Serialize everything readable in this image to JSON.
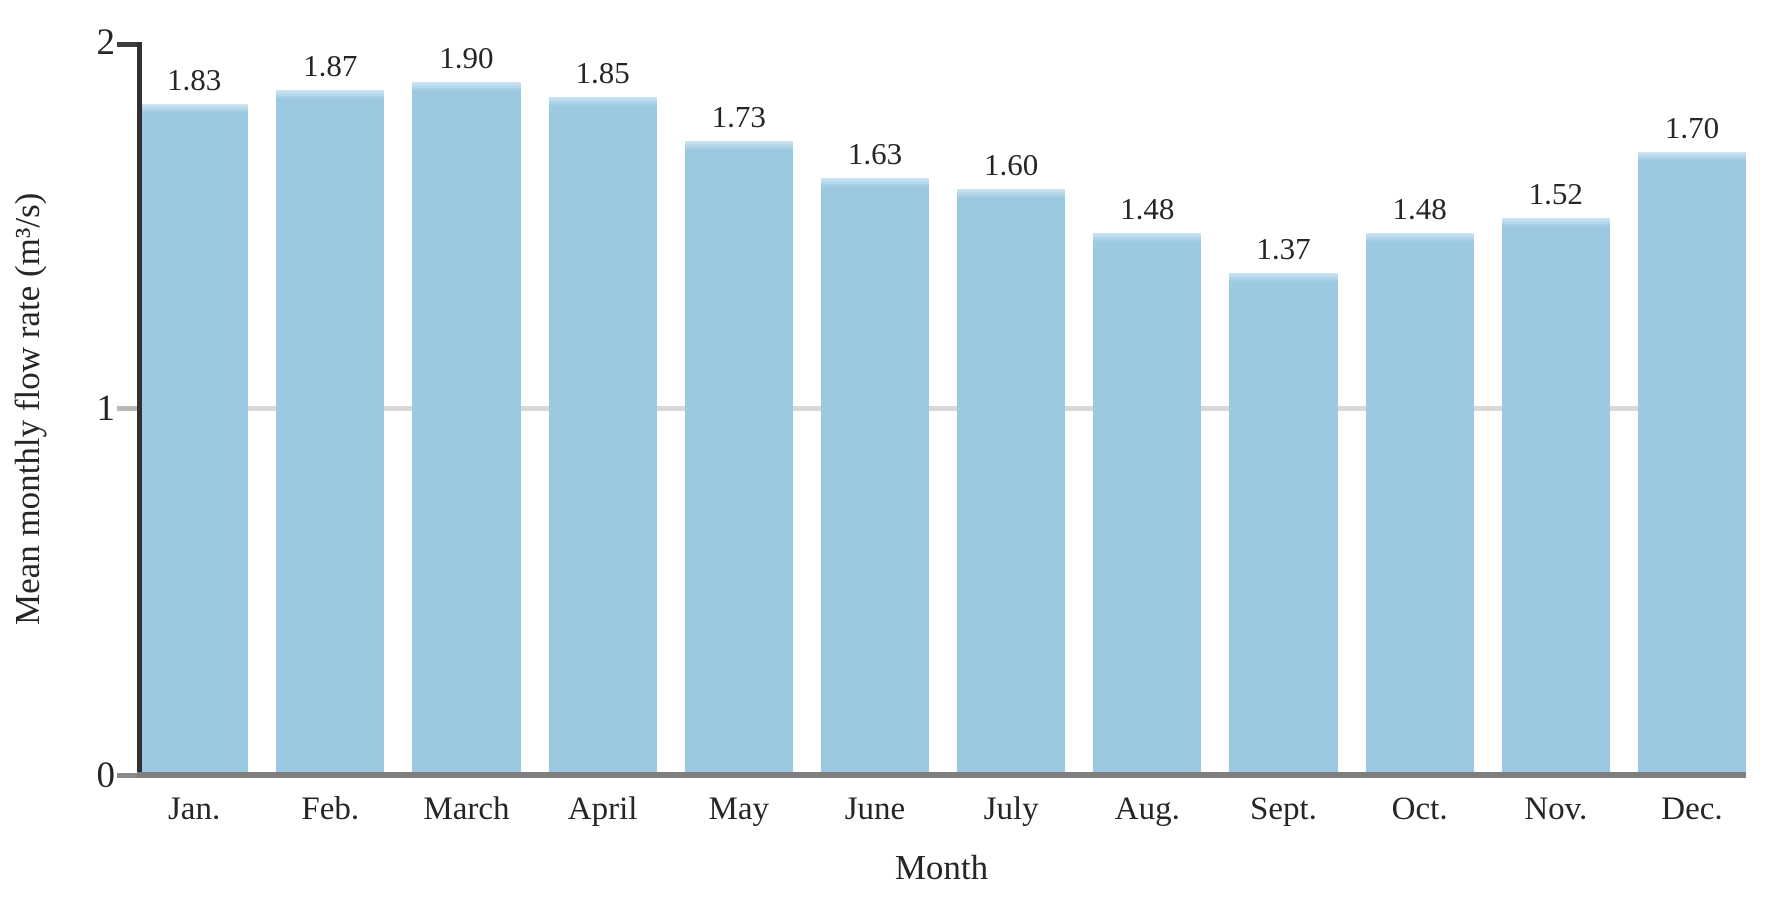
{
  "chart_data": {
    "type": "bar",
    "title": "",
    "xlabel": "Month",
    "ylabel": "Mean monthly flow rate (m³/s)",
    "categories": [
      "Jan.",
      "Feb.",
      "March",
      "April",
      "May",
      "June",
      "July",
      "Aug.",
      "Sept.",
      "Oct.",
      "Nov.",
      "Dec."
    ],
    "values": [
      1.83,
      1.87,
      1.9,
      1.85,
      1.73,
      1.63,
      1.6,
      1.48,
      1.37,
      1.48,
      1.52,
      1.7
    ],
    "value_labels": [
      "1.83",
      "1.87",
      "1.90",
      "1.85",
      "1.73",
      "1.63",
      "1.60",
      "1.48",
      "1.37",
      "1.48",
      "1.52",
      "1.70"
    ],
    "ylim": [
      0,
      2
    ],
    "yticks": [
      "0",
      "1",
      "2"
    ],
    "legend": "none",
    "grid": "single horizontal gridline at y=1",
    "colors": {
      "bar": "#9cc9e2",
      "bar_top_highlight": "#cfe4f1",
      "gridline": "#d8d8d8",
      "y_axis_line": "#303030",
      "x_baseline": "#7f7f7f",
      "text": "#262626"
    }
  }
}
